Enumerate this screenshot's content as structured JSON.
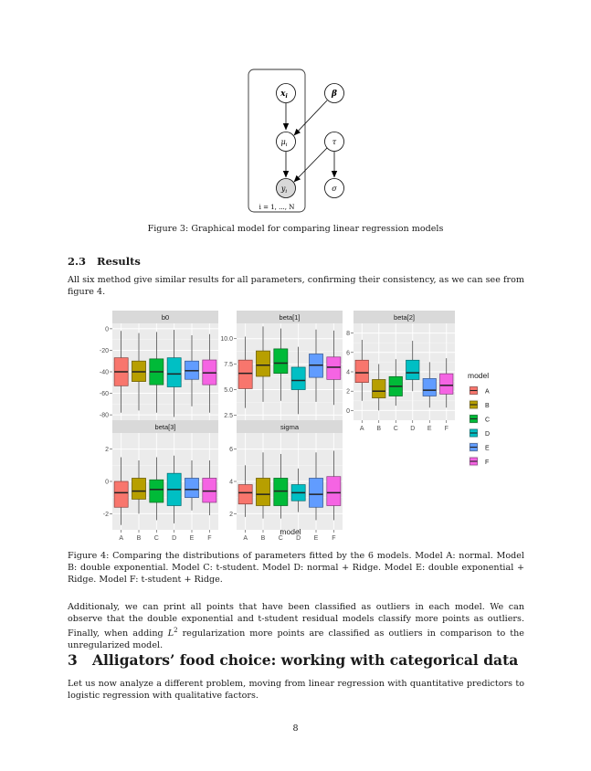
{
  "graphical_model": {
    "nodes": {
      "x": "x",
      "x_sub": "i",
      "beta": "β",
      "mu": "μ",
      "mu_sub": "i",
      "tau": "τ",
      "y": "y",
      "y_sub": "i",
      "sigma": "σ"
    },
    "plate_label": "i = 1, ..., N"
  },
  "figure3_caption": "Figure 3: Graphical model for comparing linear regression models",
  "section_2_3": {
    "number": "2.3",
    "title": "Results",
    "paragraph": "All six method give similar results for all parameters, confirming their consistency, as we can see from figure 4."
  },
  "figure4_caption": "Figure 4: Comparing the distributions of parameters fitted by the 6 models. Model A: normal. Model B: double exponential. Model C: t-student. Model D: normal + Ridge. Model E: double exponential + Ridge. Model F: t-student + Ridge.",
  "paragraph_2": {
    "text_before": "Additionaly, we can print all points that have been classified as outliers in each model. We can observe that the double exponential and t-student residual models classify more points as outliers. Finally, when adding ",
    "math": "L",
    "sup": "2",
    "text_after": " regularization more points are classified as outliers in comparison to the unregularized model."
  },
  "section_3": {
    "number": "3",
    "title": "Alligators’ food choice: working with categorical data",
    "paragraph": "Let us now analyze a different problem, moving from linear regression with quantitative predictors to logistic regression with qualitative factors."
  },
  "page_number": "8",
  "chart_data": {
    "type": "boxplot",
    "xlabel": "model",
    "categories": [
      "A",
      "B",
      "C",
      "D",
      "E",
      "F"
    ],
    "legend_title": "model",
    "legend_position": "right",
    "colors": {
      "A": "#F8766D",
      "B": "#B79F00",
      "C": "#00BA38",
      "D": "#00BFC4",
      "E": "#619CFF",
      "F": "#F564E3"
    },
    "panels": [
      {
        "title": "b0",
        "ylim": [
          -85,
          5
        ],
        "ticks": [
          0,
          -20,
          -40,
          -60,
          -80
        ],
        "tick_labels": [
          "0",
          "-20",
          "-40",
          "-60",
          "-80"
        ],
        "boxes": [
          {
            "min": -78,
            "q1": -53,
            "median": -40,
            "q3": -27,
            "max": -2
          },
          {
            "min": -76,
            "q1": -49,
            "median": -40,
            "q3": -30,
            "max": -4
          },
          {
            "min": -78,
            "q1": -52,
            "median": -40,
            "q3": -28,
            "max": -3
          },
          {
            "min": -82,
            "q1": -54,
            "median": -42,
            "q3": -27,
            "max": -1
          },
          {
            "min": -72,
            "q1": -47,
            "median": -39,
            "q3": -30,
            "max": -6
          },
          {
            "min": -78,
            "q1": -52,
            "median": -41,
            "q3": -29,
            "max": -5
          }
        ]
      },
      {
        "title": "beta[1]",
        "ylim": [
          2,
          11.5
        ],
        "ticks": [
          10,
          7.5,
          5,
          2.5
        ],
        "tick_labels": [
          "10.0",
          "7.5",
          "5.0",
          "2.5"
        ],
        "boxes": [
          {
            "min": 3.2,
            "q1": 5.1,
            "median": 6.6,
            "q3": 7.9,
            "max": 10.2
          },
          {
            "min": 3.8,
            "q1": 6.3,
            "median": 7.4,
            "q3": 8.8,
            "max": 11.2
          },
          {
            "min": 3.9,
            "q1": 6.6,
            "median": 7.6,
            "q3": 9.0,
            "max": 11.0
          },
          {
            "min": 2.6,
            "q1": 5.0,
            "median": 5.9,
            "q3": 7.2,
            "max": 9.2
          },
          {
            "min": 3.8,
            "q1": 6.2,
            "median": 7.4,
            "q3": 8.5,
            "max": 10.9
          },
          {
            "min": 3.5,
            "q1": 6.0,
            "median": 7.2,
            "q3": 8.2,
            "max": 10.8
          }
        ]
      },
      {
        "title": "beta[2]",
        "ylim": [
          -1,
          9
        ],
        "ticks": [
          8,
          6,
          4,
          2,
          0
        ],
        "tick_labels": [
          "8",
          "6",
          "4",
          "2",
          "0"
        ],
        "boxes": [
          {
            "min": 1.0,
            "q1": 2.9,
            "median": 3.9,
            "q3": 5.2,
            "max": 7.3
          },
          {
            "min": 0.0,
            "q1": 1.3,
            "median": 2.0,
            "q3": 3.2,
            "max": 4.8
          },
          {
            "min": 0.5,
            "q1": 1.5,
            "median": 2.5,
            "q3": 3.5,
            "max": 5.3
          },
          {
            "min": 2.0,
            "q1": 3.2,
            "median": 3.9,
            "q3": 5.2,
            "max": 7.2
          },
          {
            "min": 0.3,
            "q1": 1.5,
            "median": 2.1,
            "q3": 3.3,
            "max": 5.0
          },
          {
            "min": 0.3,
            "q1": 1.7,
            "median": 2.6,
            "q3": 3.8,
            "max": 5.4
          }
        ]
      },
      {
        "title": "beta[3]",
        "ylim": [
          -3,
          3
        ],
        "ticks": [
          2,
          0,
          -2
        ],
        "tick_labels": [
          "2",
          "0",
          "-2"
        ],
        "boxes": [
          {
            "min": -2.7,
            "q1": -1.6,
            "median": -0.7,
            "q3": 0.0,
            "max": 1.5
          },
          {
            "min": -2.0,
            "q1": -1.1,
            "median": -0.6,
            "q3": 0.2,
            "max": 1.3
          },
          {
            "min": -2.4,
            "q1": -1.3,
            "median": -0.5,
            "q3": 0.1,
            "max": 1.5
          },
          {
            "min": -2.6,
            "q1": -1.5,
            "median": -0.5,
            "q3": 0.5,
            "max": 1.6
          },
          {
            "min": -1.8,
            "q1": -1.0,
            "median": -0.5,
            "q3": 0.2,
            "max": 1.3
          },
          {
            "min": -2.1,
            "q1": -1.3,
            "median": -0.6,
            "q3": 0.2,
            "max": 1.3
          }
        ]
      },
      {
        "title": "sigma",
        "ylim": [
          1,
          7
        ],
        "ticks": [
          6,
          4,
          2
        ],
        "tick_labels": [
          "6",
          "4",
          "2"
        ],
        "boxes": [
          {
            "min": 1.8,
            "q1": 2.6,
            "median": 3.3,
            "q3": 3.8,
            "max": 5.0
          },
          {
            "min": 1.7,
            "q1": 2.5,
            "median": 3.2,
            "q3": 4.2,
            "max": 5.8
          },
          {
            "min": 1.7,
            "q1": 2.5,
            "median": 3.4,
            "q3": 4.2,
            "max": 5.7
          },
          {
            "min": 2.1,
            "q1": 2.8,
            "median": 3.3,
            "q3": 3.8,
            "max": 4.8
          },
          {
            "min": 1.6,
            "q1": 2.4,
            "median": 3.2,
            "q3": 4.2,
            "max": 5.8
          },
          {
            "min": 1.6,
            "q1": 2.5,
            "median": 3.3,
            "q3": 4.3,
            "max": 5.9
          }
        ]
      }
    ]
  }
}
